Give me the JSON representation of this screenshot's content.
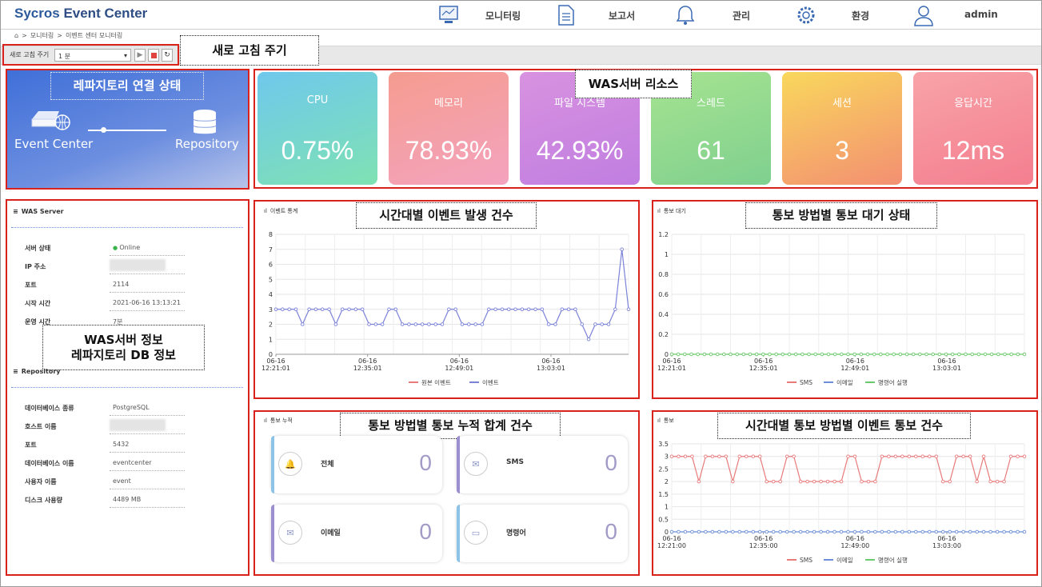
{
  "app": {
    "brand_a": "Sycros ",
    "brand_b": "Event Center"
  },
  "nav": [
    {
      "label": "모니터링",
      "icon": "monitor-icon"
    },
    {
      "label": "보고서",
      "icon": "report-icon"
    },
    {
      "label": "관리",
      "icon": "bell-icon"
    },
    {
      "label": "환경",
      "icon": "gear-icon"
    },
    {
      "label": "admin",
      "icon": "user-icon"
    }
  ],
  "breadcrumb": {
    "item1": "모니터링",
    "item2": "이벤트 센터 모니터링",
    "sep": ">"
  },
  "refresh": {
    "label": "새로 고침 주기",
    "value": "1 분"
  },
  "callouts": {
    "refresh": "새로 고침 주기",
    "repo_status": "레파지토리 연결 상태",
    "was_resource": "WAS서버 리소스",
    "event_count": "시간대별 이벤트 발생 건수",
    "notify_wait": "통보 방법별 통보 대기 상태",
    "info_line1": "WAS서버 정보",
    "info_line2": "레파지토리 DB 정보",
    "notify_total": "통보 방법별 통보 누적 합계 건수",
    "notify_time": "시간대별 통보 방법별 이벤트 통보 건수"
  },
  "repo_status": {
    "left": "Event Center",
    "right": "Repository"
  },
  "resources": [
    {
      "label": "CPU",
      "value": "0.75%",
      "colors": [
        "#6fc8ec",
        "#7ee2b3"
      ]
    },
    {
      "label": "메모리",
      "value": "78.93%",
      "colors": [
        "#f59c8f",
        "#f4a3bf"
      ]
    },
    {
      "label": "파일 시스템",
      "value": "42.93%",
      "colors": [
        "#d892e0",
        "#c07ee0"
      ]
    },
    {
      "label": "스레드",
      "value": "61",
      "colors": [
        "#a6e390",
        "#7fd08f"
      ]
    },
    {
      "label": "세션",
      "value": "3",
      "colors": [
        "#f9d85c",
        "#f38f72"
      ]
    },
    {
      "label": "응답시간",
      "value": "12ms",
      "colors": [
        "#f8a3a8",
        "#f47e8f"
      ]
    }
  ],
  "was": {
    "title": "WAS Server",
    "rows": [
      {
        "k": "서버 상태",
        "v": "Online"
      },
      {
        "k": "IP 주소",
        "v": ""
      },
      {
        "k": "포트",
        "v": "2114"
      },
      {
        "k": "시작 시간",
        "v": "2021-06-16 13:13:21"
      },
      {
        "k": "운영 시간",
        "v": "7분"
      }
    ]
  },
  "repo": {
    "title": "Repository",
    "rows": [
      {
        "k": "데이터베이스 종류",
        "v": "PostgreSQL"
      },
      {
        "k": "호스트 이름",
        "v": ""
      },
      {
        "k": "포트",
        "v": "5432"
      },
      {
        "k": "데이터베이스 이름",
        "v": "eventcenter"
      },
      {
        "k": "사용자 이름",
        "v": "event"
      },
      {
        "k": "디스크 사용량",
        "v": "4489 MB"
      }
    ]
  },
  "panels": {
    "event_stat": "이벤트 통계",
    "notify_wait": "통보 대기",
    "notify_total": "통보 누적",
    "notify": "통보"
  },
  "notify_cards": [
    {
      "label": "전체",
      "value": "0",
      "icon": "bell-icon",
      "color": "#8ec3e8"
    },
    {
      "label": "SMS",
      "value": "0",
      "icon": "sms-icon",
      "color": "#9c8fcf"
    },
    {
      "label": "이메일",
      "value": "0",
      "icon": "mail-icon",
      "color": "#9c8fcf"
    },
    {
      "label": "명령어",
      "value": "0",
      "icon": "terminal-icon",
      "color": "#8ec3e8"
    }
  ],
  "chart_data": [
    {
      "type": "line",
      "x_ticks": [
        "06-16 12:21:01",
        "06-16 12:35:01",
        "06-16 12:49:01",
        "06-16 13:03:01"
      ],
      "ylim": [
        0,
        8
      ],
      "yticks": [
        0,
        1,
        2,
        3,
        4,
        5,
        6,
        7,
        8
      ],
      "grid": true,
      "legend": "bottom",
      "series": [
        {
          "name": "원본 이벤트",
          "color": "#e87a7a",
          "values": []
        },
        {
          "name": "이벤트",
          "color": "#7b83d8",
          "values": [
            3,
            3,
            3,
            3,
            2,
            3,
            3,
            3,
            3,
            2,
            3,
            3,
            3,
            3,
            2,
            2,
            2,
            3,
            3,
            2,
            2,
            2,
            2,
            2,
            2,
            2,
            3,
            3,
            2,
            2,
            2,
            2,
            3,
            3,
            3,
            3,
            3,
            3,
            3,
            3,
            3,
            2,
            2,
            3,
            3,
            3,
            2,
            1,
            2,
            2,
            2,
            3,
            7,
            3
          ]
        }
      ]
    },
    {
      "type": "line",
      "x_ticks": [
        "06-16 12:21:01",
        "06-16 12:35:01",
        "06-16 12:49:01",
        "06-16 13:03:01"
      ],
      "ylim": [
        0,
        1.2
      ],
      "yticks": [
        0,
        0.2,
        0.4,
        0.6,
        0.8,
        1,
        1.2
      ],
      "grid": true,
      "legend": "bottom",
      "series": [
        {
          "name": "SMS",
          "color": "#e87a7a",
          "values": []
        },
        {
          "name": "이메일",
          "color": "#6b8fd8",
          "values": []
        },
        {
          "name": "명령어 실행",
          "color": "#6cc86c",
          "values": [
            0,
            0,
            0,
            0,
            0,
            0,
            0,
            0,
            0,
            0,
            0,
            0,
            0,
            0,
            0,
            0,
            0,
            0,
            0,
            0,
            0,
            0,
            0,
            0,
            0,
            0,
            0,
            0,
            0,
            0,
            0,
            0,
            0,
            0,
            0,
            0,
            0,
            0,
            0,
            0,
            0,
            0,
            0,
            0,
            0,
            0,
            0,
            0,
            0,
            0,
            0,
            0,
            0,
            0,
            0
          ]
        }
      ]
    },
    {
      "type": "line",
      "x_ticks": [
        "06-16 12:21:00",
        "06-16 12:35:00",
        "06-16 12:49:00",
        "06-16 13:03:00"
      ],
      "ylim": [
        0,
        3.5
      ],
      "yticks": [
        0,
        0.5,
        1,
        1.5,
        2,
        2.5,
        3,
        3.5
      ],
      "grid": true,
      "legend": "bottom",
      "series": [
        {
          "name": "SMS",
          "color": "#e87a7a",
          "values": [
            3,
            3,
            3,
            3,
            2,
            3,
            3,
            3,
            3,
            2,
            3,
            3,
            3,
            3,
            2,
            2,
            2,
            3,
            3,
            2,
            2,
            2,
            2,
            2,
            2,
            2,
            3,
            3,
            2,
            2,
            2,
            3,
            3,
            3,
            3,
            3,
            3,
            3,
            3,
            3,
            2,
            2,
            3,
            3,
            3,
            2,
            3,
            2,
            2,
            2,
            3,
            3,
            3
          ]
        },
        {
          "name": "이메일",
          "color": "#6b8fd8",
          "values": [
            0,
            0,
            0,
            0,
            0,
            0,
            0,
            0,
            0,
            0,
            0,
            0,
            0,
            0,
            0,
            0,
            0,
            0,
            0,
            0,
            0,
            0,
            0,
            0,
            0,
            0,
            0,
            0,
            0,
            0,
            0,
            0,
            0,
            0,
            0,
            0,
            0,
            0,
            0,
            0,
            0,
            0,
            0,
            0,
            0,
            0,
            0,
            0,
            0,
            0,
            0,
            0,
            0
          ]
        },
        {
          "name": "명령어 실행",
          "color": "#6cc86c",
          "values": []
        }
      ]
    }
  ]
}
